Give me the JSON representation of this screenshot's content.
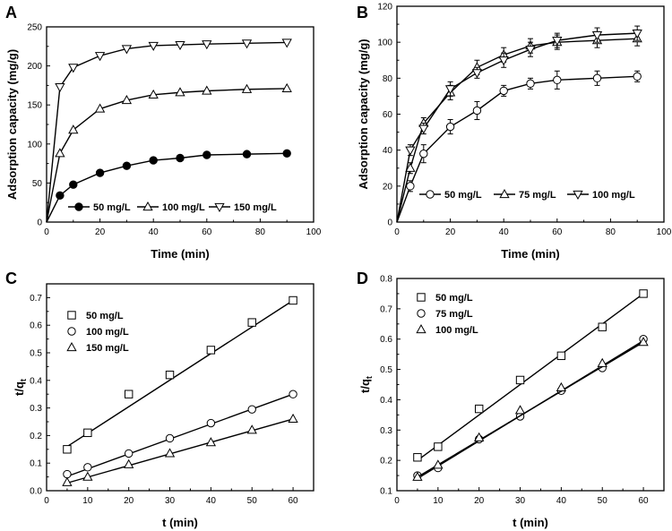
{
  "chart_data": [
    {
      "panel": "A",
      "type": "line",
      "xlabel": "Time (min)",
      "ylabel": "Adsorption capacity (mg/g)",
      "xlim": [
        0,
        100
      ],
      "ylim": [
        0,
        250
      ],
      "xticks": [
        0,
        20,
        40,
        60,
        80,
        100
      ],
      "yticks": [
        0,
        50,
        100,
        150,
        200,
        250
      ],
      "legend_position": "bottom-inside-row",
      "x": [
        0,
        5,
        10,
        20,
        30,
        40,
        50,
        60,
        75,
        90
      ],
      "series": [
        {
          "name": "50 mg/L",
          "marker": "circle",
          "filled": true,
          "values": [
            0,
            34,
            48,
            63,
            72,
            79,
            82,
            86,
            87,
            88
          ]
        },
        {
          "name": "100 mg/L",
          "marker": "triangle-up",
          "filled": false,
          "values": [
            0,
            88,
            118,
            145,
            156,
            163,
            166,
            168,
            170,
            171
          ]
        },
        {
          "name": "150 mg/L",
          "marker": "triangle-down",
          "filled": false,
          "values": [
            0,
            173,
            198,
            213,
            222,
            226,
            227,
            228,
            229,
            230
          ]
        }
      ]
    },
    {
      "panel": "B",
      "type": "line",
      "xlabel": "Time (min)",
      "ylabel": "Adsorption capacity (mg/g)",
      "xlim": [
        0,
        100
      ],
      "ylim": [
        0,
        120
      ],
      "xticks": [
        0,
        20,
        40,
        60,
        80,
        100
      ],
      "yticks": [
        0,
        20,
        40,
        60,
        80,
        100,
        120
      ],
      "legend_position": "bottom-inside-row",
      "x": [
        0,
        5,
        10,
        20,
        30,
        40,
        50,
        60,
        75,
        90
      ],
      "series": [
        {
          "name": "50 mg/L",
          "marker": "circle",
          "filled": false,
          "values": [
            0,
            20,
            38,
            53,
            62,
            73,
            77,
            79,
            80,
            81
          ],
          "errors": [
            0,
            3,
            5,
            4,
            5,
            3,
            3,
            5,
            4,
            3
          ]
        },
        {
          "name": "75 mg/L",
          "marker": "triangle-up",
          "filled": false,
          "values": [
            0,
            30,
            55,
            72,
            86,
            93,
            98,
            100,
            101,
            102
          ],
          "errors": [
            0,
            3,
            3,
            4,
            4,
            4,
            4,
            4,
            4,
            4
          ]
        },
        {
          "name": "100 mg/L",
          "marker": "triangle-down",
          "filled": false,
          "values": [
            0,
            40,
            52,
            74,
            83,
            90,
            96,
            101,
            104,
            105
          ],
          "errors": [
            0,
            3,
            3,
            4,
            3,
            4,
            4,
            4,
            4,
            4
          ]
        }
      ]
    },
    {
      "panel": "C",
      "type": "scatter",
      "xlabel": "t (min)",
      "ylabel": "t/q",
      "ylabel_sub": "t",
      "xlim": [
        0,
        65
      ],
      "ylim": [
        0,
        0.75
      ],
      "xticks": [
        0,
        10,
        20,
        30,
        40,
        50,
        60
      ],
      "yticks": [
        0.0,
        0.1,
        0.2,
        0.3,
        0.4,
        0.5,
        0.6,
        0.7
      ],
      "legend_position": "top-left",
      "x": [
        5,
        10,
        20,
        30,
        40,
        50,
        60
      ],
      "series": [
        {
          "name": "50 mg/L",
          "marker": "square",
          "values": [
            0.15,
            0.21,
            0.35,
            0.42,
            0.51,
            0.61,
            0.69
          ],
          "fit": [
            0.16,
            0.69
          ]
        },
        {
          "name": "100 mg/L",
          "marker": "circle",
          "values": [
            0.06,
            0.085,
            0.135,
            0.19,
            0.245,
            0.295,
            0.35
          ],
          "fit": [
            0.052,
            0.35
          ]
        },
        {
          "name": "150 mg/L",
          "marker": "triangle-up",
          "values": [
            0.03,
            0.05,
            0.095,
            0.135,
            0.175,
            0.22,
            0.26
          ],
          "fit": [
            0.028,
            0.26
          ]
        }
      ]
    },
    {
      "panel": "D",
      "type": "scatter",
      "xlabel": "t (min)",
      "ylabel": "t/q",
      "ylabel_sub": "t",
      "xlim": [
        0,
        65
      ],
      "ylim": [
        0.1,
        0.8
      ],
      "xticks": [
        0,
        10,
        20,
        30,
        40,
        50,
        60
      ],
      "yticks": [
        0.1,
        0.2,
        0.3,
        0.4,
        0.5,
        0.6,
        0.7,
        0.8
      ],
      "legend_position": "top-left",
      "x": [
        5,
        10,
        20,
        30,
        40,
        50,
        60
      ],
      "series": [
        {
          "name": "50 mg/L",
          "marker": "square",
          "values": [
            0.21,
            0.245,
            0.37,
            0.465,
            0.545,
            0.64,
            0.75
          ],
          "fit": [
            0.2,
            0.75
          ]
        },
        {
          "name": "75 mg/L",
          "marker": "circle",
          "values": [
            0.15,
            0.175,
            0.27,
            0.345,
            0.43,
            0.505,
            0.6
          ],
          "fit": [
            0.14,
            0.595
          ]
        },
        {
          "name": "100 mg/L",
          "marker": "triangle-up",
          "values": [
            0.145,
            0.185,
            0.275,
            0.365,
            0.44,
            0.52,
            0.59
          ],
          "fit": [
            0.145,
            0.59
          ]
        }
      ]
    }
  ]
}
